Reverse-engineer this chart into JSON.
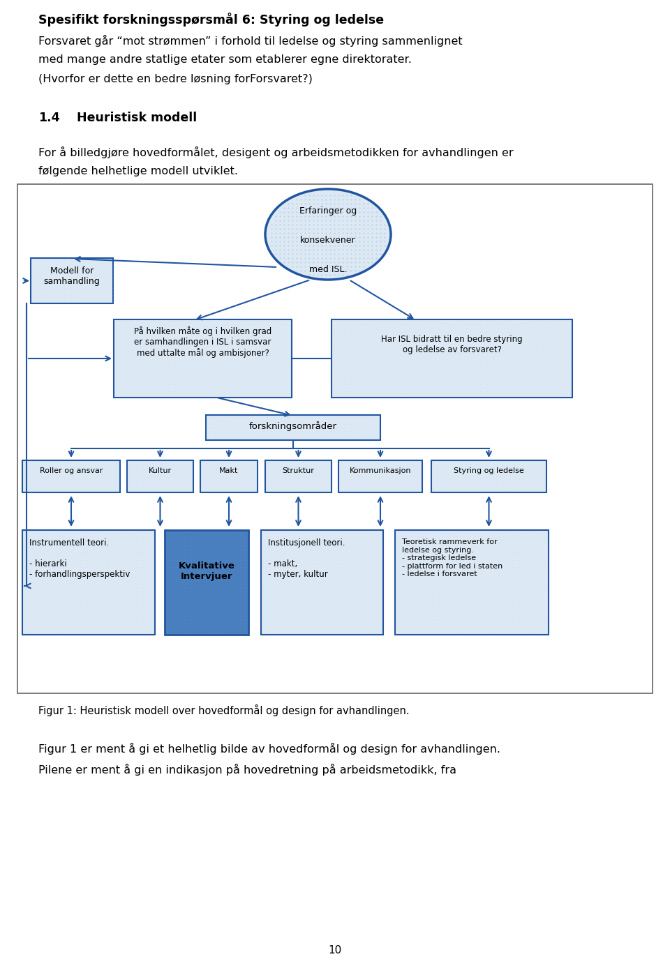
{
  "bg_color": "#ffffff",
  "border_color": "#2255a0",
  "dot_color": "#b8cde0",
  "title_text": "Spesifikt forskningsspørsmål 6: Styring og ledelse",
  "para1": "Forsvaret går “mot strømmen” i forhold til ledelse og styring sammenlignet",
  "para2": "med mange andre statlige etater som etablerer egne direktorater.",
  "para3": "(Hvorfor er dette en bedre løsning forForsvaret?)",
  "section_num": "1.4",
  "section_title": "Heuristisk modell",
  "intro1": "For å billedgjøre hovedformålet, desigent og arbeidsmetodikken for avhandlingen er",
  "intro2": "følgende helhetlige modell utviklet.",
  "caption": "Figur 1: Heuristisk modell over hovedformål og design for avhandlingen.",
  "footer1": "Figur 1 er ment å gi et helhetlig bilde av hovedformål og design for avhandlingen.",
  "footer2": "Pilene er ment å gi en indikasjon på hovedretning på arbeidsmetodikk, fra",
  "page_num": "10",
  "ellipse_text": "Erfaringer og\n\nkonsekvener\n\nmed ISL.",
  "box_modell_line1": "Modell for",
  "box_modell_line2": "samhandling",
  "box_q1": "På hvilken måte og i hvilken grad\ner samhandlingen i ISL i samsvar\nmed uttalte mål og ambisjoner?",
  "box_q2": "Har ISL bidratt til en bedre styring\nog ledelse av forsvaret?",
  "box_forsk": "forskningsområder",
  "boxes_mid": [
    "Roller og ansvar",
    "Kultur",
    "Makt",
    "Struktur",
    "Kommunikasjon",
    "Styring og ledelse"
  ],
  "box_instr_lines": [
    "Instrumentell teori.",
    "",
    "- hierarki",
    "- forhandlingsperspektiv"
  ],
  "box_kval_lines": [
    "Kvalitative",
    "Intervjuer"
  ],
  "box_inst_lines": [
    "Institusjonell teori.",
    "",
    "- makt,",
    "- myter, kultur"
  ],
  "box_teor_lines": [
    "Teoretisk rammeverk for",
    "ledelse og styring.",
    "- strategisk ledelse",
    "- plattform for led i staten",
    "- ledelse i forsvaret"
  ]
}
